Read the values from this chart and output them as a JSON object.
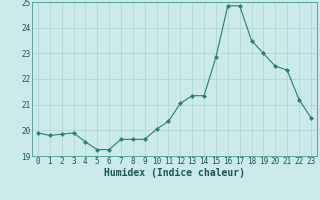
{
  "x": [
    0,
    1,
    2,
    3,
    4,
    5,
    6,
    7,
    8,
    9,
    10,
    11,
    12,
    13,
    14,
    15,
    16,
    17,
    18,
    19,
    20,
    21,
    22,
    23
  ],
  "y": [
    19.9,
    19.8,
    19.85,
    19.9,
    19.55,
    19.25,
    19.25,
    19.65,
    19.65,
    19.65,
    20.05,
    20.35,
    21.05,
    21.35,
    21.35,
    22.85,
    24.85,
    24.85,
    23.5,
    23.0,
    22.5,
    22.35,
    21.2,
    20.5
  ],
  "line_color": "#2e7d6e",
  "marker": "D",
  "marker_size": 2.0,
  "bg_color": "#cceaea",
  "grid_color": "#aad4d4",
  "xlabel": "Humidex (Indice chaleur)",
  "ylim": [
    19,
    25
  ],
  "xlim": [
    -0.5,
    23.5
  ],
  "yticks": [
    19,
    20,
    21,
    22,
    23,
    24,
    25
  ],
  "xticks": [
    0,
    1,
    2,
    3,
    4,
    5,
    6,
    7,
    8,
    9,
    10,
    11,
    12,
    13,
    14,
    15,
    16,
    17,
    18,
    19,
    20,
    21,
    22,
    23
  ],
  "tick_fontsize": 5.5,
  "xlabel_fontsize": 7.0,
  "linewidth": 0.8
}
